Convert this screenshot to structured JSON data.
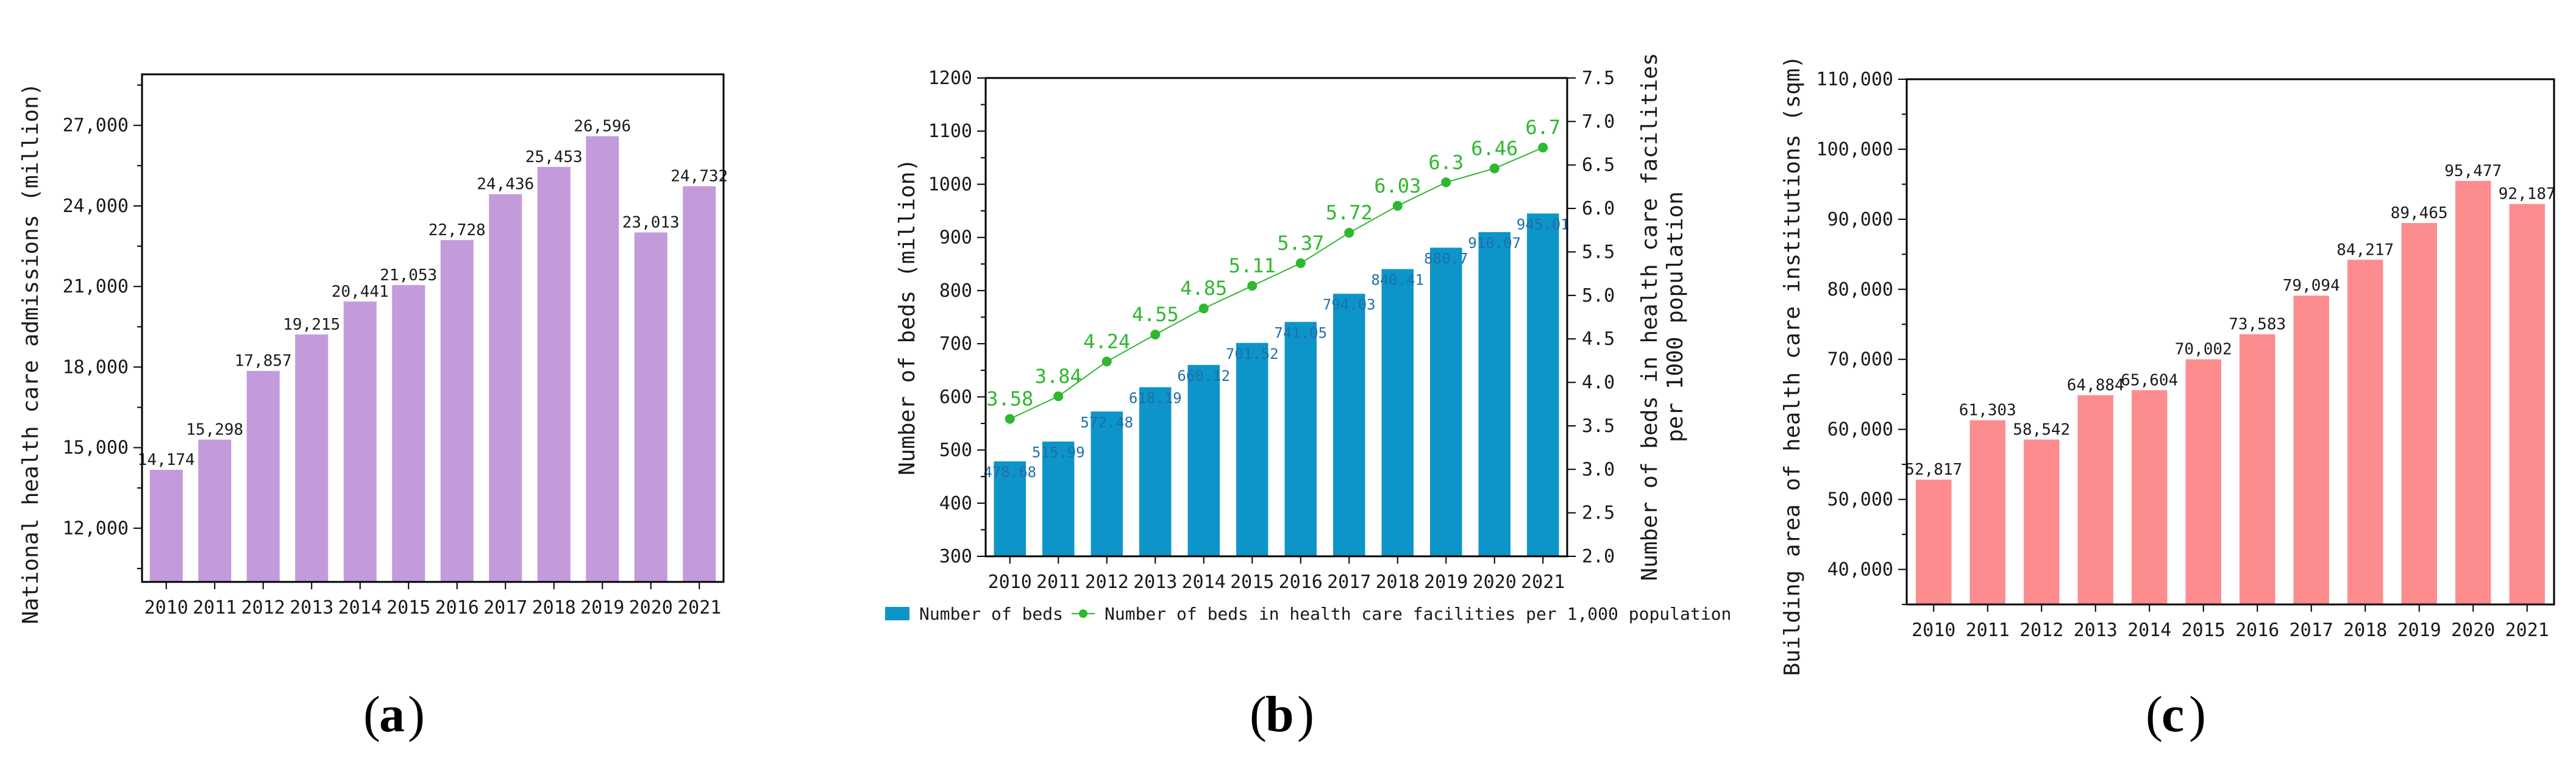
{
  "colors": {
    "purple_bar": "#c39bdb",
    "blue_bar": "#0d95c9",
    "blue_label": "#1f6fa8",
    "green_line": "#2db82d",
    "pink_bar": "#fd8c8e",
    "axis": "#000000"
  },
  "chart_data": [
    {
      "type": "bar",
      "panel_label": "a",
      "categories": [
        "2010",
        "2011",
        "2012",
        "2013",
        "2014",
        "2015",
        "2016",
        "2017",
        "2018",
        "2019",
        "2020",
        "2021"
      ],
      "values": [
        14174,
        15298,
        17857,
        19215,
        20441,
        21053,
        22728,
        24436,
        25453,
        26596,
        23013,
        24732
      ],
      "value_labels": [
        "14,174",
        "15,298",
        "17,857",
        "19,215",
        "20,441",
        "21,053",
        "22,728",
        "24,436",
        "25,453",
        "26,596",
        "23,013",
        "24,732"
      ],
      "ylabel": "National health care admissions (million)",
      "xlabel": "",
      "ylim": [
        10000,
        28900
      ],
      "yticks": [
        12000,
        15000,
        18000,
        21000,
        24000,
        27000
      ],
      "ytick_labels": [
        "12,000",
        "15,000",
        "18,000",
        "21,000",
        "24,000",
        "27,000"
      ]
    },
    {
      "type": "bar+line",
      "panel_label": "b",
      "categories": [
        "2010",
        "2011",
        "2012",
        "2013",
        "2014",
        "2015",
        "2016",
        "2017",
        "2018",
        "2019",
        "2020",
        "2021"
      ],
      "series": [
        {
          "name": "Number of beds",
          "kind": "bar",
          "axis": "left",
          "values": [
            478.68,
            515.99,
            572.48,
            618.19,
            660.12,
            701.52,
            741.05,
            794.03,
            840.41,
            880.7,
            910.07,
            945.01
          ],
          "value_labels": [
            "478.68",
            "515.99",
            "572.48",
            "618.19",
            "660.12",
            "701.52",
            "741.05",
            "794.03",
            "840.41",
            "880.7",
            "910.07",
            "945.01"
          ]
        },
        {
          "name": "Number of beds in health care facilities per 1,000 population",
          "kind": "line",
          "axis": "right",
          "values": [
            3.58,
            3.84,
            4.24,
            4.55,
            4.85,
            5.11,
            5.37,
            5.72,
            6.03,
            6.3,
            6.46,
            6.7
          ],
          "value_labels": [
            "3.58",
            "3.84",
            "4.24",
            "4.55",
            "4.85",
            "5.11",
            "5.37",
            "5.72",
            "6.03",
            "6.3",
            "6.46",
            "6.7"
          ]
        }
      ],
      "ylabel": "Number of beds (million)",
      "ylim": [
        300,
        1200
      ],
      "yticks": [
        300,
        400,
        500,
        600,
        700,
        800,
        900,
        1000,
        1100,
        1200
      ],
      "ytick_labels": [
        "300",
        "400",
        "500",
        "600",
        "700",
        "800",
        "900",
        "1000",
        "1100",
        "1200"
      ],
      "y2label_line1": "Number of beds in health care facilities",
      "y2label_line2": "per 1000 population",
      "y2lim": [
        2.0,
        7.5
      ],
      "y2ticks": [
        2,
        2.5,
        3,
        3.5,
        4,
        4.5,
        5,
        5.5,
        6,
        6.5,
        7,
        7.5
      ],
      "y2tick_labels": [
        "2.0",
        "2.5",
        "3.0",
        "3.5",
        "4.0",
        "4.5",
        "5.0",
        "5.5",
        "6.0",
        "6.5",
        "7.0",
        "7.5"
      ],
      "legend": [
        "Number of beds",
        "Number of beds in health care facilities per 1,000 population"
      ],
      "legend_position": "bottom"
    },
    {
      "type": "bar",
      "panel_label": "c",
      "categories": [
        "2010",
        "2011",
        "2012",
        "2013",
        "2014",
        "2015",
        "2016",
        "2017",
        "2018",
        "2019",
        "2020",
        "2021"
      ],
      "values": [
        52817,
        61303,
        58542,
        64884,
        65604,
        70002,
        73583,
        79094,
        84217,
        89465,
        95477,
        92187
      ],
      "value_labels": [
        "52,817",
        "61,303",
        "58,542",
        "64,884",
        "65,604",
        "70,002",
        "73,583",
        "79,094",
        "84,217",
        "89,465",
        "95,477",
        "92,187"
      ],
      "ylabel": "Building area of health care institutions (sqm)",
      "xlabel": "",
      "ylim": [
        35000,
        110000
      ],
      "yticks": [
        40000,
        50000,
        60000,
        70000,
        80000,
        90000,
        100000,
        110000
      ],
      "ytick_labels": [
        "40,000",
        "50,000",
        "60,000",
        "70,000",
        "80,000",
        "90,000",
        "100,000",
        "110,000"
      ]
    }
  ]
}
